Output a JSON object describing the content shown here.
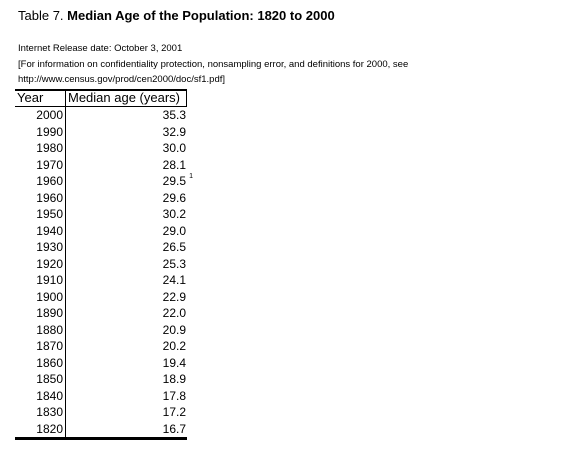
{
  "title": {
    "prefix": "Table 7.",
    "main": "Median Age of the Population:  1820 to 2000"
  },
  "notes": {
    "release": "Internet Release date:  October 3, 2001",
    "info_line1": "[For information on confidentiality protection, nonsampling error, and definitions for 2000, see",
    "info_line2": "http://www.census.gov/prod/cen2000/doc/sf1.pdf]"
  },
  "table": {
    "headers": [
      "Year",
      "Median age (years)"
    ],
    "rows": [
      {
        "year": "2000",
        "age": "35.3",
        "footnote": ""
      },
      {
        "year": "1990",
        "age": "32.9",
        "footnote": ""
      },
      {
        "year": "1980",
        "age": "30.0",
        "footnote": ""
      },
      {
        "year": "1970",
        "age": "28.1",
        "footnote": ""
      },
      {
        "year": "1960",
        "age": "29.5",
        "footnote": "1"
      },
      {
        "year": "1960",
        "age": "29.6",
        "footnote": ""
      },
      {
        "year": "1950",
        "age": "30.2",
        "footnote": ""
      },
      {
        "year": "1940",
        "age": "29.0",
        "footnote": ""
      },
      {
        "year": "1930",
        "age": "26.5",
        "footnote": ""
      },
      {
        "year": "1920",
        "age": "25.3",
        "footnote": ""
      },
      {
        "year": "1910",
        "age": "24.1",
        "footnote": ""
      },
      {
        "year": "1900",
        "age": "22.9",
        "footnote": ""
      },
      {
        "year": "1890",
        "age": "22.0",
        "footnote": ""
      },
      {
        "year": "1880",
        "age": "20.9",
        "footnote": ""
      },
      {
        "year": "1870",
        "age": "20.2",
        "footnote": ""
      },
      {
        "year": "1860",
        "age": "19.4",
        "footnote": ""
      },
      {
        "year": "1850",
        "age": "18.9",
        "footnote": ""
      },
      {
        "year": "1840",
        "age": "17.8",
        "footnote": ""
      },
      {
        "year": "1830",
        "age": "17.2",
        "footnote": ""
      },
      {
        "year": "1820",
        "age": "16.7",
        "footnote": ""
      }
    ]
  }
}
